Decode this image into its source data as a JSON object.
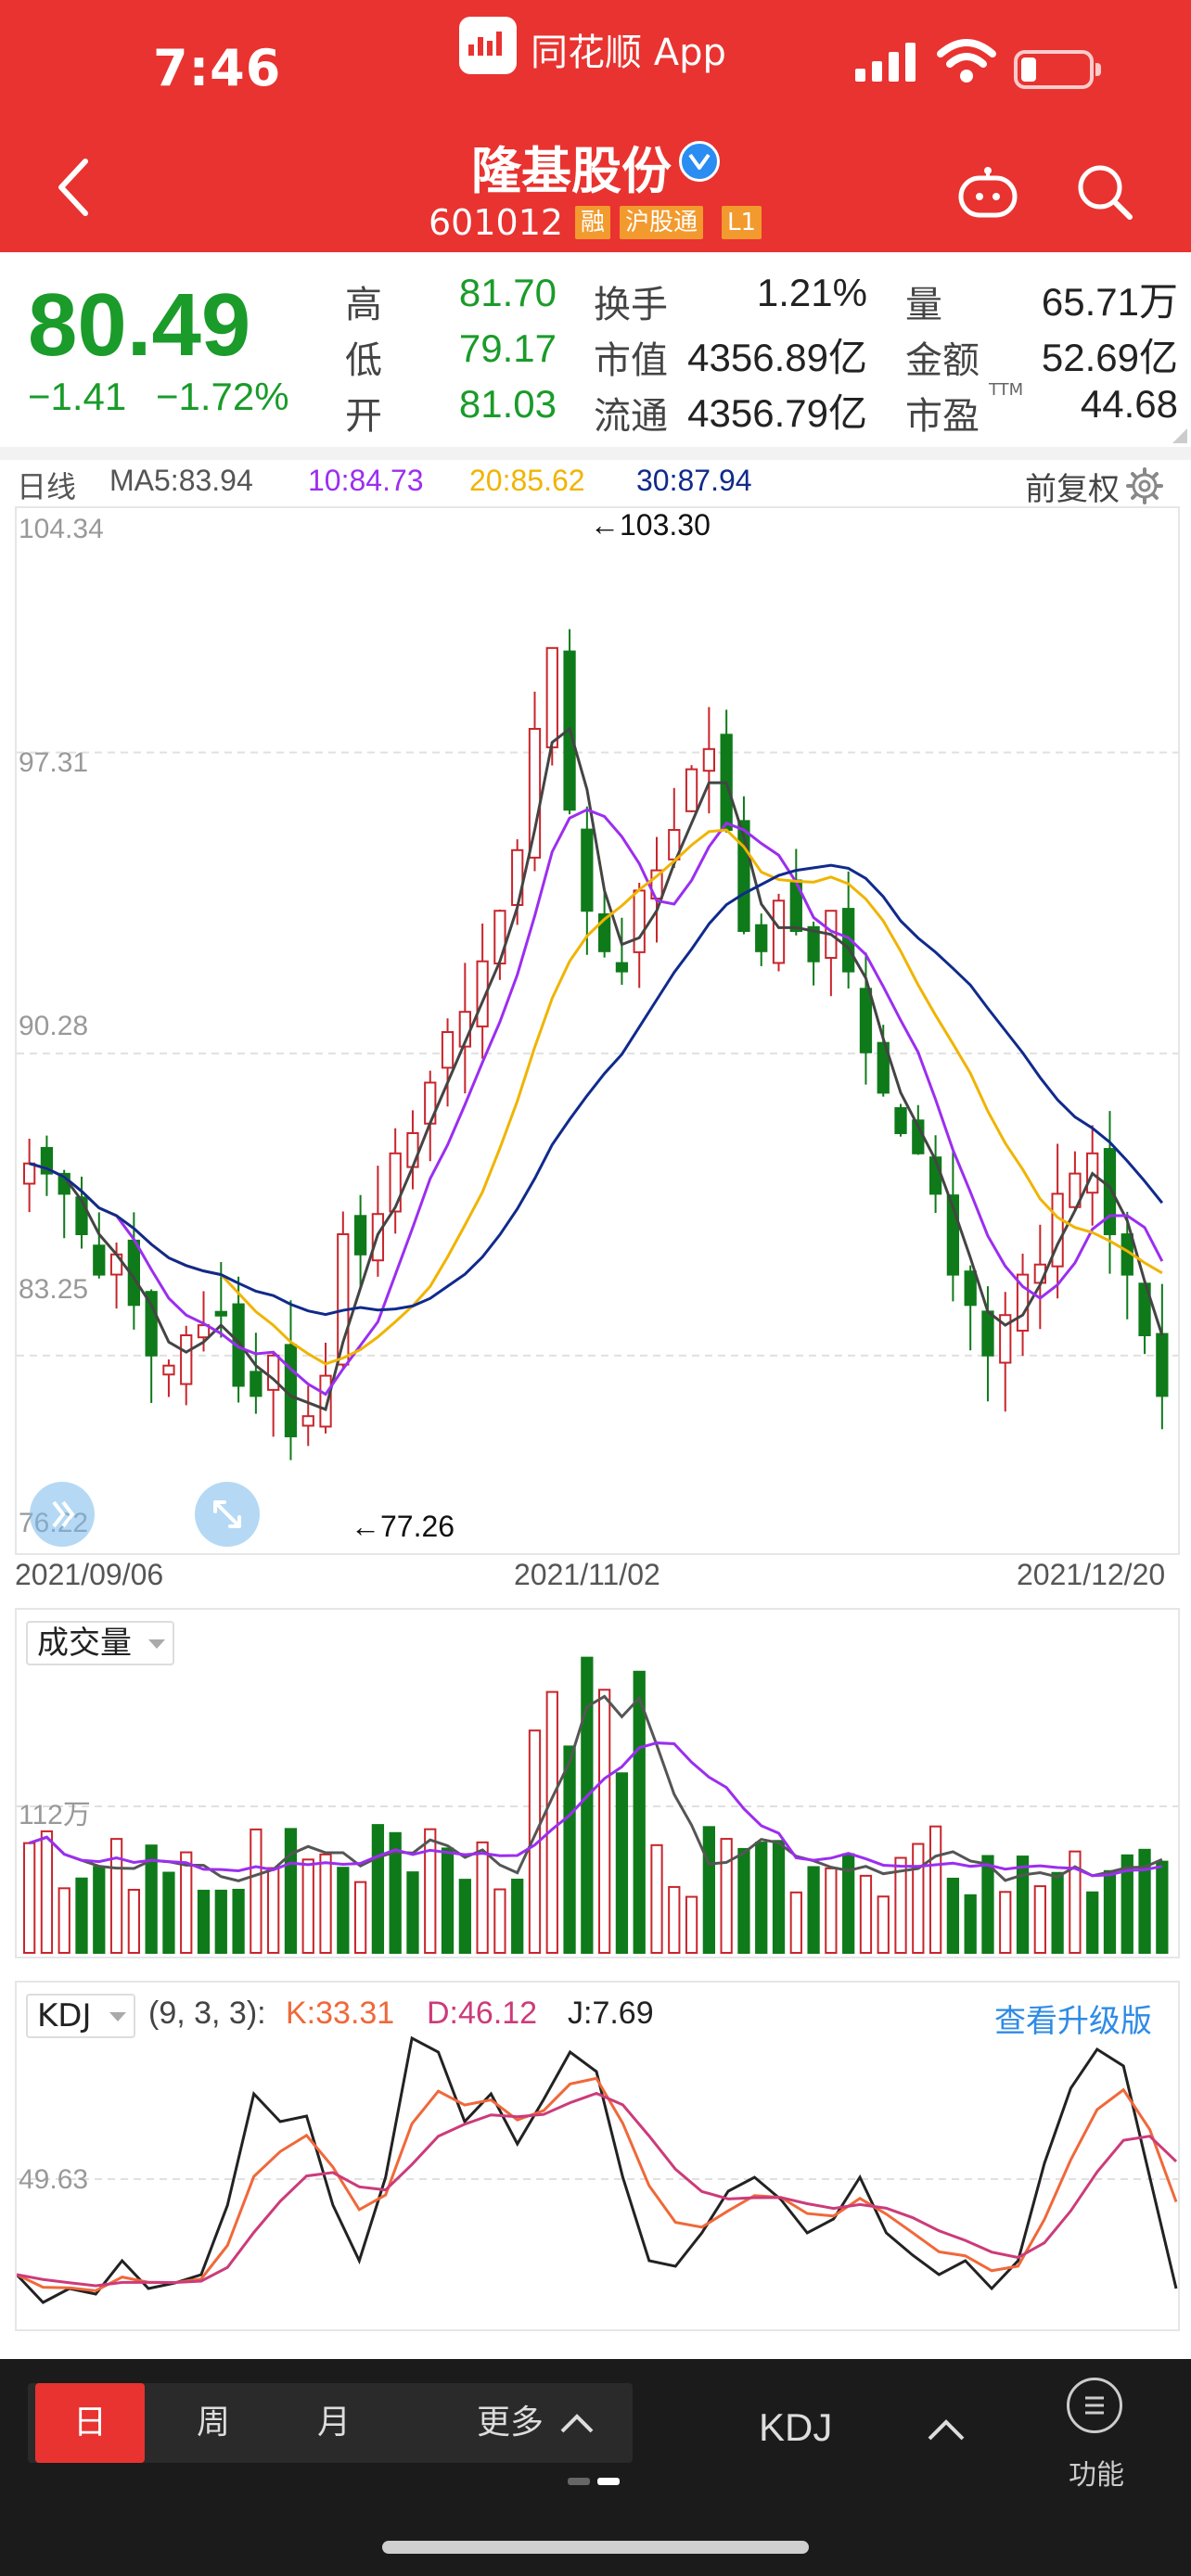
{
  "status_bar": {
    "time": "7:46",
    "app_name": "同花顺 App"
  },
  "header": {
    "stock_name": "隆基股份",
    "stock_code": "601012",
    "tags": [
      "融",
      "沪股通",
      "L1"
    ],
    "colors": {
      "background": "#e83330",
      "tag": "#f29a2e"
    }
  },
  "quote": {
    "price": "80.49",
    "change": "−1.41",
    "change_pct": "−1.72%",
    "high_label": "高",
    "high": "81.70",
    "low_label": "低",
    "low": "79.17",
    "open_label": "开",
    "open": "81.03",
    "turnover_label": "换手",
    "turnover": "1.21%",
    "mcap_label": "市值",
    "mcap": "4356.89亿",
    "float_label": "流通",
    "float": "4356.79亿",
    "volume_label": "量",
    "volume": "65.71万",
    "amount_label": "金额",
    "amount": "52.69亿",
    "pe_label": "市盈",
    "pe_sup": "TTM",
    "pe": "44.68",
    "colors": {
      "down": "#1a9b2a",
      "up": "#d0282c"
    }
  },
  "kline": {
    "period_label": "日线",
    "ma5": "MA5:83.94",
    "ma10": "10:84.73",
    "ma20": "20:85.62",
    "ma30": "30:87.94",
    "adjust_label": "前复权",
    "y_labels": [
      "104.34",
      "97.31",
      "90.28",
      "83.25",
      "76.22"
    ],
    "high_marker": "←103.30",
    "low_marker": "←77.26",
    "dates": [
      "2021/09/06",
      "2021/11/02",
      "2021/12/20"
    ],
    "colors": {
      "ma5": "#444444",
      "ma10": "#9b2ef0",
      "ma20": "#f0b400",
      "ma30": "#102a8c",
      "up": "#c8252b",
      "down": "#0f7a1a"
    }
  },
  "volume": {
    "indicator_label": "成交量",
    "y_label": "112万"
  },
  "kdj": {
    "indicator_label": "KDJ",
    "params": "(9, 3, 3):",
    "k": "K:33.31",
    "d": "D:46.12",
    "j": "J:7.69",
    "upgrade_link": "查看升级版",
    "y_label": "49.63",
    "colors": {
      "k": "#f0683a",
      "d": "#cc3b7a",
      "j": "#222222",
      "link": "#2e8be6"
    }
  },
  "bottom_bar": {
    "periods": [
      "日",
      "周",
      "月"
    ],
    "more": "更多",
    "indicator": "KDJ",
    "function_label": "功能"
  }
}
